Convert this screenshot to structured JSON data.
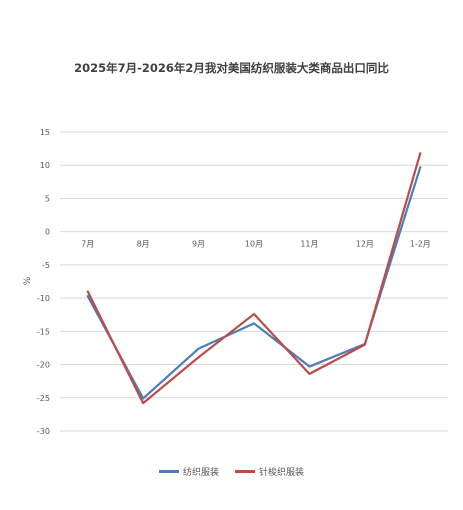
{
  "chart_data": {
    "type": "line",
    "title": "2025年7月-2026年2月我对美国纺织服装大类商品出口同比",
    "ylabel": "%",
    "xlabel": "",
    "categories": [
      "7月",
      "8月",
      "9月",
      "10月",
      "11月",
      "12月",
      "1-2月"
    ],
    "ylim": [
      -30,
      15
    ],
    "yticks": [
      15,
      10,
      5,
      0,
      -5,
      -10,
      -15,
      -20,
      -25,
      -30
    ],
    "grid": true,
    "legend_position": "bottom",
    "series": [
      {
        "name": "纺织服装",
        "color": "#4a7ebb",
        "values": [
          -9.7,
          -25.1,
          -17.6,
          -13.8,
          -20.3,
          -16.9,
          9.7
        ]
      },
      {
        "name": "针梭织服装",
        "color": "#be4b48",
        "values": [
          -9.0,
          -25.8,
          -18.9,
          -12.4,
          -21.4,
          -17.0,
          11.8
        ]
      }
    ]
  }
}
